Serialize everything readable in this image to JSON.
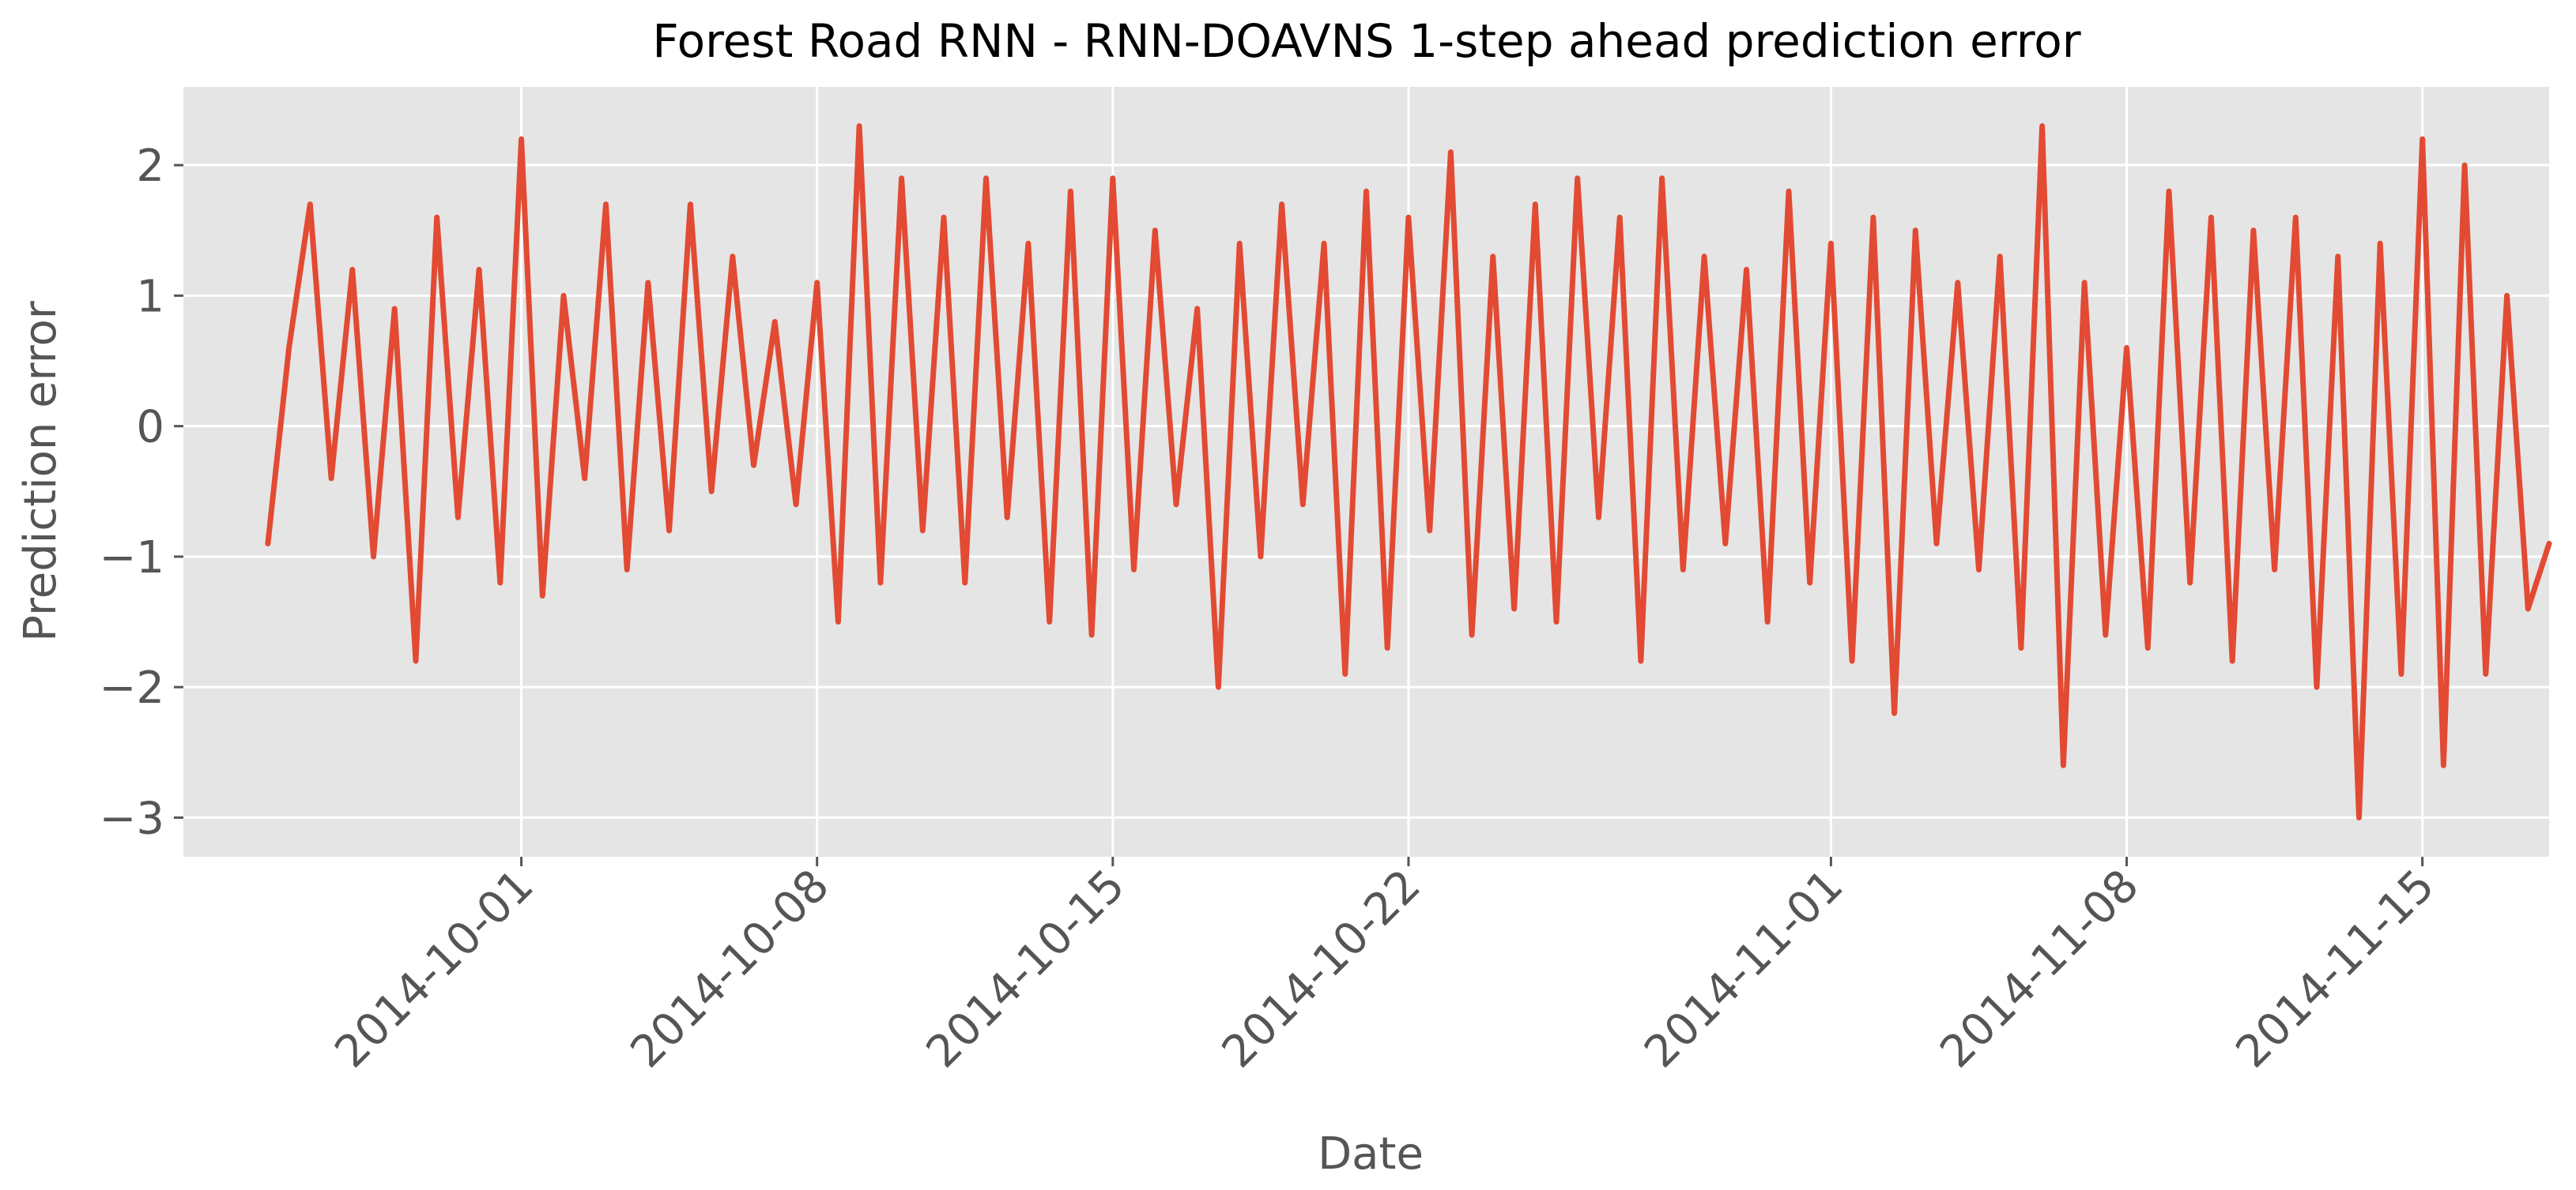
{
  "chart_data": {
    "type": "line",
    "title": "Forest Road RNN - RNN-DOAVNS 1-step ahead prediction error",
    "xlabel": "Date",
    "ylabel": "Prediction error",
    "x_range": [
      "2014-09-23",
      "2014-11-18"
    ],
    "ylim": [
      -3.3,
      2.6
    ],
    "yticks": [
      -3,
      -2,
      -1,
      0,
      1,
      2
    ],
    "ytick_labels": [
      "−3",
      "−2",
      "−1",
      "0",
      "1",
      "2"
    ],
    "xticks": [
      "2014-10-01",
      "2014-10-08",
      "2014-10-15",
      "2014-10-22",
      "2014-11-01",
      "2014-11-08",
      "2014-11-15"
    ],
    "grid": true,
    "legend": "none",
    "series_color": "#E24A33",
    "background_color": "#E5E5E5",
    "series": [
      {
        "points": [
          [
            "2014-09-25",
            -0.9
          ],
          [
            "2014-09-25T12:00",
            0.6
          ],
          [
            "2014-09-26",
            1.7
          ],
          [
            "2014-09-26T12:00",
            -0.4
          ],
          [
            "2014-09-27",
            1.2
          ],
          [
            "2014-09-27T12:00",
            -1.0
          ],
          [
            "2014-09-28",
            0.9
          ],
          [
            "2014-09-28T12:00",
            -1.8
          ],
          [
            "2014-09-29",
            1.6
          ],
          [
            "2014-09-29T12:00",
            -0.7
          ],
          [
            "2014-09-30",
            1.2
          ],
          [
            "2014-09-30T12:00",
            -1.2
          ],
          [
            "2014-10-01",
            2.2
          ],
          [
            "2014-10-01T12:00",
            -1.3
          ],
          [
            "2014-10-02",
            1.0
          ],
          [
            "2014-10-02T12:00",
            -0.4
          ],
          [
            "2014-10-03",
            1.7
          ],
          [
            "2014-10-03T12:00",
            -1.1
          ],
          [
            "2014-10-04",
            1.1
          ],
          [
            "2014-10-04T12:00",
            -0.8
          ],
          [
            "2014-10-05",
            1.7
          ],
          [
            "2014-10-05T12:00",
            -0.5
          ],
          [
            "2014-10-06",
            1.3
          ],
          [
            "2014-10-06T12:00",
            -0.3
          ],
          [
            "2014-10-07",
            0.8
          ],
          [
            "2014-10-07T12:00",
            -0.6
          ],
          [
            "2014-10-08",
            1.1
          ],
          [
            "2014-10-08T12:00",
            -1.5
          ],
          [
            "2014-10-09",
            2.3
          ],
          [
            "2014-10-09T12:00",
            -1.2
          ],
          [
            "2014-10-10",
            1.9
          ],
          [
            "2014-10-10T12:00",
            -0.8
          ],
          [
            "2014-10-11",
            1.6
          ],
          [
            "2014-10-11T12:00",
            -1.2
          ],
          [
            "2014-10-12",
            1.9
          ],
          [
            "2014-10-12T12:00",
            -0.7
          ],
          [
            "2014-10-13",
            1.4
          ],
          [
            "2014-10-13T12:00",
            -1.5
          ],
          [
            "2014-10-14",
            1.8
          ],
          [
            "2014-10-14T12:00",
            -1.6
          ],
          [
            "2014-10-15",
            1.9
          ],
          [
            "2014-10-15T12:00",
            -1.1
          ],
          [
            "2014-10-16",
            1.5
          ],
          [
            "2014-10-16T12:00",
            -0.6
          ],
          [
            "2014-10-17",
            0.9
          ],
          [
            "2014-10-17T12:00",
            -2.0
          ],
          [
            "2014-10-18",
            1.4
          ],
          [
            "2014-10-18T12:00",
            -1.0
          ],
          [
            "2014-10-19",
            1.7
          ],
          [
            "2014-10-19T12:00",
            -0.6
          ],
          [
            "2014-10-20",
            1.4
          ],
          [
            "2014-10-20T12:00",
            -1.9
          ],
          [
            "2014-10-21",
            1.8
          ],
          [
            "2014-10-21T12:00",
            -1.7
          ],
          [
            "2014-10-22",
            1.6
          ],
          [
            "2014-10-22T12:00",
            -0.8
          ],
          [
            "2014-10-23",
            2.1
          ],
          [
            "2014-10-23T12:00",
            -1.6
          ],
          [
            "2014-10-24",
            1.3
          ],
          [
            "2014-10-24T12:00",
            -1.4
          ],
          [
            "2014-10-25",
            1.7
          ],
          [
            "2014-10-25T12:00",
            -1.5
          ],
          [
            "2014-10-26",
            1.9
          ],
          [
            "2014-10-26T12:00",
            -0.7
          ],
          [
            "2014-10-27",
            1.6
          ],
          [
            "2014-10-27T12:00",
            -1.8
          ],
          [
            "2014-10-28",
            1.9
          ],
          [
            "2014-10-28T12:00",
            -1.1
          ],
          [
            "2014-10-29",
            1.3
          ],
          [
            "2014-10-29T12:00",
            -0.9
          ],
          [
            "2014-10-30",
            1.2
          ],
          [
            "2014-10-30T12:00",
            -1.5
          ],
          [
            "2014-10-31",
            1.8
          ],
          [
            "2014-10-31T12:00",
            -1.2
          ],
          [
            "2014-11-01",
            1.4
          ],
          [
            "2014-11-01T12:00",
            -1.8
          ],
          [
            "2014-11-02",
            1.6
          ],
          [
            "2014-11-02T12:00",
            -2.2
          ],
          [
            "2014-11-03",
            1.5
          ],
          [
            "2014-11-03T12:00",
            -0.9
          ],
          [
            "2014-11-04",
            1.1
          ],
          [
            "2014-11-04T12:00",
            -1.1
          ],
          [
            "2014-11-05",
            1.3
          ],
          [
            "2014-11-05T12:00",
            -1.7
          ],
          [
            "2014-11-06",
            2.3
          ],
          [
            "2014-11-06T12:00",
            -2.6
          ],
          [
            "2014-11-07",
            1.1
          ],
          [
            "2014-11-07T12:00",
            -1.6
          ],
          [
            "2014-11-08",
            0.6
          ],
          [
            "2014-11-08T12:00",
            -1.7
          ],
          [
            "2014-11-09",
            1.8
          ],
          [
            "2014-11-09T12:00",
            -1.2
          ],
          [
            "2014-11-10",
            1.6
          ],
          [
            "2014-11-10T12:00",
            -1.8
          ],
          [
            "2014-11-11",
            1.5
          ],
          [
            "2014-11-11T12:00",
            -1.1
          ],
          [
            "2014-11-12",
            1.6
          ],
          [
            "2014-11-12T12:00",
            -2.0
          ],
          [
            "2014-11-13",
            1.3
          ],
          [
            "2014-11-13T12:00",
            -3.0
          ],
          [
            "2014-11-14",
            1.4
          ],
          [
            "2014-11-14T12:00",
            -1.9
          ],
          [
            "2014-11-15",
            2.2
          ],
          [
            "2014-11-15T12:00",
            -2.6
          ],
          [
            "2014-11-16",
            2.0
          ],
          [
            "2014-11-16T12:00",
            -1.9
          ],
          [
            "2014-11-17",
            1.0
          ],
          [
            "2014-11-17T12:00",
            -1.4
          ],
          [
            "2014-11-18",
            -0.9
          ]
        ]
      }
    ]
  }
}
